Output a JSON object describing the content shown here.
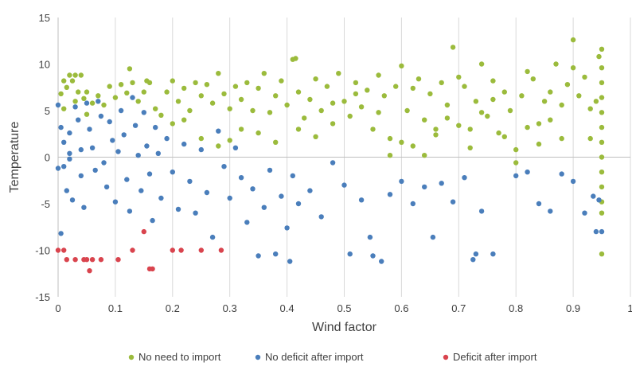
{
  "chart_data": {
    "type": "scatter",
    "xlabel": "Wind factor",
    "ylabel": "Temperature",
    "xlim": [
      0,
      1
    ],
    "ylim": [
      -15,
      15
    ],
    "xticks": [
      "0",
      "0.1",
      "0.2",
      "0.3",
      "0.4",
      "0.5",
      "0.6",
      "0.7",
      "0.8",
      "0.9",
      "1"
    ],
    "yticks": [
      "15",
      "10",
      "5",
      "0",
      "-5",
      "-10",
      "-15"
    ],
    "grid": "vertical",
    "legend_position": "bottom",
    "series": [
      {
        "name": "No need to import",
        "color": "#9BBB3C",
        "points": [
          [
            0.005,
            6.8
          ],
          [
            0.01,
            8.2
          ],
          [
            0.015,
            7.5
          ],
          [
            0.02,
            8.8
          ],
          [
            0.025,
            8.2
          ],
          [
            0.03,
            8.8
          ],
          [
            0.035,
            7.0
          ],
          [
            0.04,
            8.8
          ],
          [
            0.045,
            6.3
          ],
          [
            0.05,
            7.0
          ],
          [
            0.06,
            5.8
          ],
          [
            0.07,
            6.6
          ],
          [
            0.08,
            5.6
          ],
          [
            0.09,
            7.6
          ],
          [
            0.1,
            6.4
          ],
          [
            0.11,
            7.8
          ],
          [
            0.12,
            6.9
          ],
          [
            0.125,
            9.5
          ],
          [
            0.13,
            8.0
          ],
          [
            0.14,
            6.0
          ],
          [
            0.15,
            7.0
          ],
          [
            0.155,
            8.2
          ],
          [
            0.16,
            8.0
          ],
          [
            0.17,
            5.2
          ],
          [
            0.18,
            4.5
          ],
          [
            0.19,
            7.0
          ],
          [
            0.2,
            8.2
          ],
          [
            0.21,
            6.0
          ],
          [
            0.22,
            7.4
          ],
          [
            0.23,
            5.0
          ],
          [
            0.24,
            8.0
          ],
          [
            0.25,
            6.6
          ],
          [
            0.26,
            7.8
          ],
          [
            0.27,
            5.8
          ],
          [
            0.28,
            9.0
          ],
          [
            0.29,
            6.8
          ],
          [
            0.3,
            5.2
          ],
          [
            0.31,
            7.6
          ],
          [
            0.32,
            6.2
          ],
          [
            0.33,
            8.0
          ],
          [
            0.34,
            5.0
          ],
          [
            0.35,
            7.4
          ],
          [
            0.36,
            9.0
          ],
          [
            0.37,
            4.8
          ],
          [
            0.38,
            6.6
          ],
          [
            0.39,
            8.2
          ],
          [
            0.4,
            5.6
          ],
          [
            0.41,
            10.5
          ],
          [
            0.415,
            10.6
          ],
          [
            0.42,
            7.0
          ],
          [
            0.43,
            4.2
          ],
          [
            0.44,
            6.2
          ],
          [
            0.45,
            8.4
          ],
          [
            0.46,
            5.0
          ],
          [
            0.47,
            7.6
          ],
          [
            0.48,
            3.6
          ],
          [
            0.49,
            9.0
          ],
          [
            0.5,
            6.0
          ],
          [
            0.51,
            4.4
          ],
          [
            0.52,
            8.0
          ],
          [
            0.53,
            5.4
          ],
          [
            0.54,
            7.2
          ],
          [
            0.55,
            3.0
          ],
          [
            0.56,
            8.8
          ],
          [
            0.57,
            6.6
          ],
          [
            0.58,
            2.0
          ],
          [
            0.59,
            7.6
          ],
          [
            0.6,
            9.8
          ],
          [
            0.61,
            5.0
          ],
          [
            0.62,
            1.2
          ],
          [
            0.63,
            8.4
          ],
          [
            0.64,
            4.0
          ],
          [
            0.65,
            6.8
          ],
          [
            0.66,
            2.4
          ],
          [
            0.67,
            8.0
          ],
          [
            0.68,
            5.6
          ],
          [
            0.69,
            11.8
          ],
          [
            0.7,
            3.4
          ],
          [
            0.71,
            7.6
          ],
          [
            0.72,
            1.0
          ],
          [
            0.73,
            6.0
          ],
          [
            0.74,
            10.0
          ],
          [
            0.75,
            4.4
          ],
          [
            0.76,
            8.2
          ],
          [
            0.77,
            2.6
          ],
          [
            0.78,
            7.0
          ],
          [
            0.79,
            5.0
          ],
          [
            0.8,
            0.8
          ],
          [
            0.81,
            6.6
          ],
          [
            0.82,
            3.2
          ],
          [
            0.83,
            8.4
          ],
          [
            0.84,
            1.4
          ],
          [
            0.85,
            6.0
          ],
          [
            0.86,
            4.0
          ],
          [
            0.87,
            10.0
          ],
          [
            0.88,
            5.6
          ],
          [
            0.89,
            7.8
          ],
          [
            0.9,
            12.6
          ],
          [
            0.91,
            6.6
          ],
          [
            0.92,
            8.6
          ],
          [
            0.93,
            2.0
          ],
          [
            0.94,
            6.0
          ],
          [
            0.945,
            10.8
          ],
          [
            0.95,
            11.6
          ],
          [
            0.95,
            9.6
          ],
          [
            0.95,
            8.0
          ],
          [
            0.95,
            6.4
          ],
          [
            0.95,
            4.8
          ],
          [
            0.95,
            3.2
          ],
          [
            0.95,
            1.6
          ],
          [
            0.95,
            0.0
          ],
          [
            0.95,
            -1.6
          ],
          [
            0.95,
            -3.2
          ],
          [
            0.95,
            -4.8
          ],
          [
            0.95,
            -6.0
          ],
          [
            0.95,
            -10.4
          ],
          [
            0.01,
            5.2
          ],
          [
            0.03,
            6.0
          ],
          [
            0.05,
            4.6
          ],
          [
            0.2,
            3.6
          ],
          [
            0.22,
            4.0
          ],
          [
            0.25,
            2.0
          ],
          [
            0.28,
            1.2
          ],
          [
            0.3,
            1.8
          ],
          [
            0.32,
            3.0
          ],
          [
            0.35,
            2.6
          ],
          [
            0.38,
            1.6
          ],
          [
            0.42,
            3.0
          ],
          [
            0.45,
            2.2
          ],
          [
            0.48,
            5.8
          ],
          [
            0.52,
            6.8
          ],
          [
            0.56,
            4.8
          ],
          [
            0.6,
            1.6
          ],
          [
            0.64,
            0.2
          ],
          [
            0.68,
            4.2
          ],
          [
            0.72,
            3.0
          ],
          [
            0.76,
            6.2
          ],
          [
            0.8,
            -0.6
          ],
          [
            0.84,
            3.6
          ],
          [
            0.88,
            2.0
          ],
          [
            0.58,
            0.2
          ],
          [
            0.62,
            7.4
          ],
          [
            0.66,
            3.0
          ],
          [
            0.7,
            8.6
          ],
          [
            0.74,
            4.8
          ],
          [
            0.78,
            2.2
          ],
          [
            0.82,
            9.2
          ],
          [
            0.86,
            7.0
          ],
          [
            0.9,
            9.6
          ],
          [
            0.93,
            5.2
          ]
        ]
      },
      {
        "name": "No deficit after import",
        "color": "#4A7EBB",
        "points": [
          [
            0.0,
            5.6
          ],
          [
            0.005,
            3.2
          ],
          [
            0.01,
            1.6
          ],
          [
            0.01,
            -1.0
          ],
          [
            0.015,
            -3.6
          ],
          [
            0.02,
            2.6
          ],
          [
            0.02,
            0.4
          ],
          [
            0.025,
            -4.6
          ],
          [
            0.03,
            5.4
          ],
          [
            0.035,
            4.0
          ],
          [
            0.04,
            0.8
          ],
          [
            0.04,
            -2.0
          ],
          [
            0.045,
            -5.4
          ],
          [
            0.05,
            5.8
          ],
          [
            0.055,
            3.0
          ],
          [
            0.06,
            1.0
          ],
          [
            0.065,
            -1.4
          ],
          [
            0.07,
            6.0
          ],
          [
            0.075,
            4.4
          ],
          [
            0.08,
            -0.6
          ],
          [
            0.085,
            -3.2
          ],
          [
            0.09,
            3.8
          ],
          [
            0.095,
            1.8
          ],
          [
            0.1,
            -4.8
          ],
          [
            0.105,
            0.6
          ],
          [
            0.11,
            5.0
          ],
          [
            0.115,
            2.4
          ],
          [
            0.12,
            -2.4
          ],
          [
            0.125,
            -5.8
          ],
          [
            0.13,
            6.4
          ],
          [
            0.135,
            3.4
          ],
          [
            0.14,
            0.2
          ],
          [
            0.145,
            -3.6
          ],
          [
            0.15,
            4.8
          ],
          [
            0.155,
            1.2
          ],
          [
            0.16,
            -1.8
          ],
          [
            0.165,
            -6.8
          ],
          [
            0.17,
            3.2
          ],
          [
            0.175,
            0.4
          ],
          [
            0.18,
            -4.4
          ],
          [
            0.19,
            2.0
          ],
          [
            0.2,
            -1.6
          ],
          [
            0.21,
            -5.6
          ],
          [
            0.22,
            1.4
          ],
          [
            0.23,
            -2.6
          ],
          [
            0.24,
            -6.0
          ],
          [
            0.25,
            0.8
          ],
          [
            0.26,
            -3.8
          ],
          [
            0.27,
            -8.6
          ],
          [
            0.28,
            2.8
          ],
          [
            0.29,
            -1.0
          ],
          [
            0.3,
            -4.4
          ],
          [
            0.31,
            1.0
          ],
          [
            0.32,
            -2.2
          ],
          [
            0.33,
            -7.0
          ],
          [
            0.34,
            -3.4
          ],
          [
            0.35,
            -10.6
          ],
          [
            0.36,
            -5.4
          ],
          [
            0.37,
            -1.4
          ],
          [
            0.38,
            -10.4
          ],
          [
            0.39,
            -4.2
          ],
          [
            0.4,
            -7.6
          ],
          [
            0.405,
            -11.2
          ],
          [
            0.41,
            -2.0
          ],
          [
            0.42,
            -5.0
          ],
          [
            0.44,
            -3.6
          ],
          [
            0.46,
            -6.4
          ],
          [
            0.48,
            -0.6
          ],
          [
            0.5,
            -3.0
          ],
          [
            0.51,
            -10.4
          ],
          [
            0.53,
            -4.6
          ],
          [
            0.545,
            -8.6
          ],
          [
            0.55,
            -10.6
          ],
          [
            0.565,
            -11.2
          ],
          [
            0.58,
            -4.0
          ],
          [
            0.6,
            -2.6
          ],
          [
            0.62,
            -5.0
          ],
          [
            0.64,
            -3.2
          ],
          [
            0.655,
            -8.6
          ],
          [
            0.67,
            -2.8
          ],
          [
            0.69,
            -4.8
          ],
          [
            0.71,
            -2.2
          ],
          [
            0.725,
            -11.0
          ],
          [
            0.73,
            -10.4
          ],
          [
            0.74,
            -5.8
          ],
          [
            0.76,
            -10.4
          ],
          [
            0.8,
            -2.0
          ],
          [
            0.82,
            -1.6
          ],
          [
            0.84,
            -5.0
          ],
          [
            0.86,
            -5.8
          ],
          [
            0.88,
            -1.8
          ],
          [
            0.9,
            -2.6
          ],
          [
            0.92,
            -6.0
          ],
          [
            0.935,
            -4.2
          ],
          [
            0.94,
            -8.0
          ],
          [
            0.945,
            -4.6
          ],
          [
            0.95,
            -8.0
          ],
          [
            0.005,
            -8.2
          ],
          [
            0.0,
            -1.2
          ],
          [
            0.02,
            -0.2
          ]
        ]
      },
      {
        "name": "Deficit after import",
        "color": "#D9444E",
        "points": [
          [
            0.0,
            -10.0
          ],
          [
            0.01,
            -10.0
          ],
          [
            0.015,
            -11.0
          ],
          [
            0.03,
            -11.0
          ],
          [
            0.045,
            -11.0
          ],
          [
            0.05,
            -11.0
          ],
          [
            0.055,
            -12.2
          ],
          [
            0.06,
            -11.0
          ],
          [
            0.075,
            -11.0
          ],
          [
            0.105,
            -11.0
          ],
          [
            0.13,
            -10.0
          ],
          [
            0.15,
            -8.0
          ],
          [
            0.16,
            -12.0
          ],
          [
            0.165,
            -12.0
          ],
          [
            0.2,
            -10.0
          ],
          [
            0.215,
            -10.0
          ],
          [
            0.25,
            -10.0
          ],
          [
            0.285,
            -10.0
          ]
        ]
      }
    ]
  }
}
